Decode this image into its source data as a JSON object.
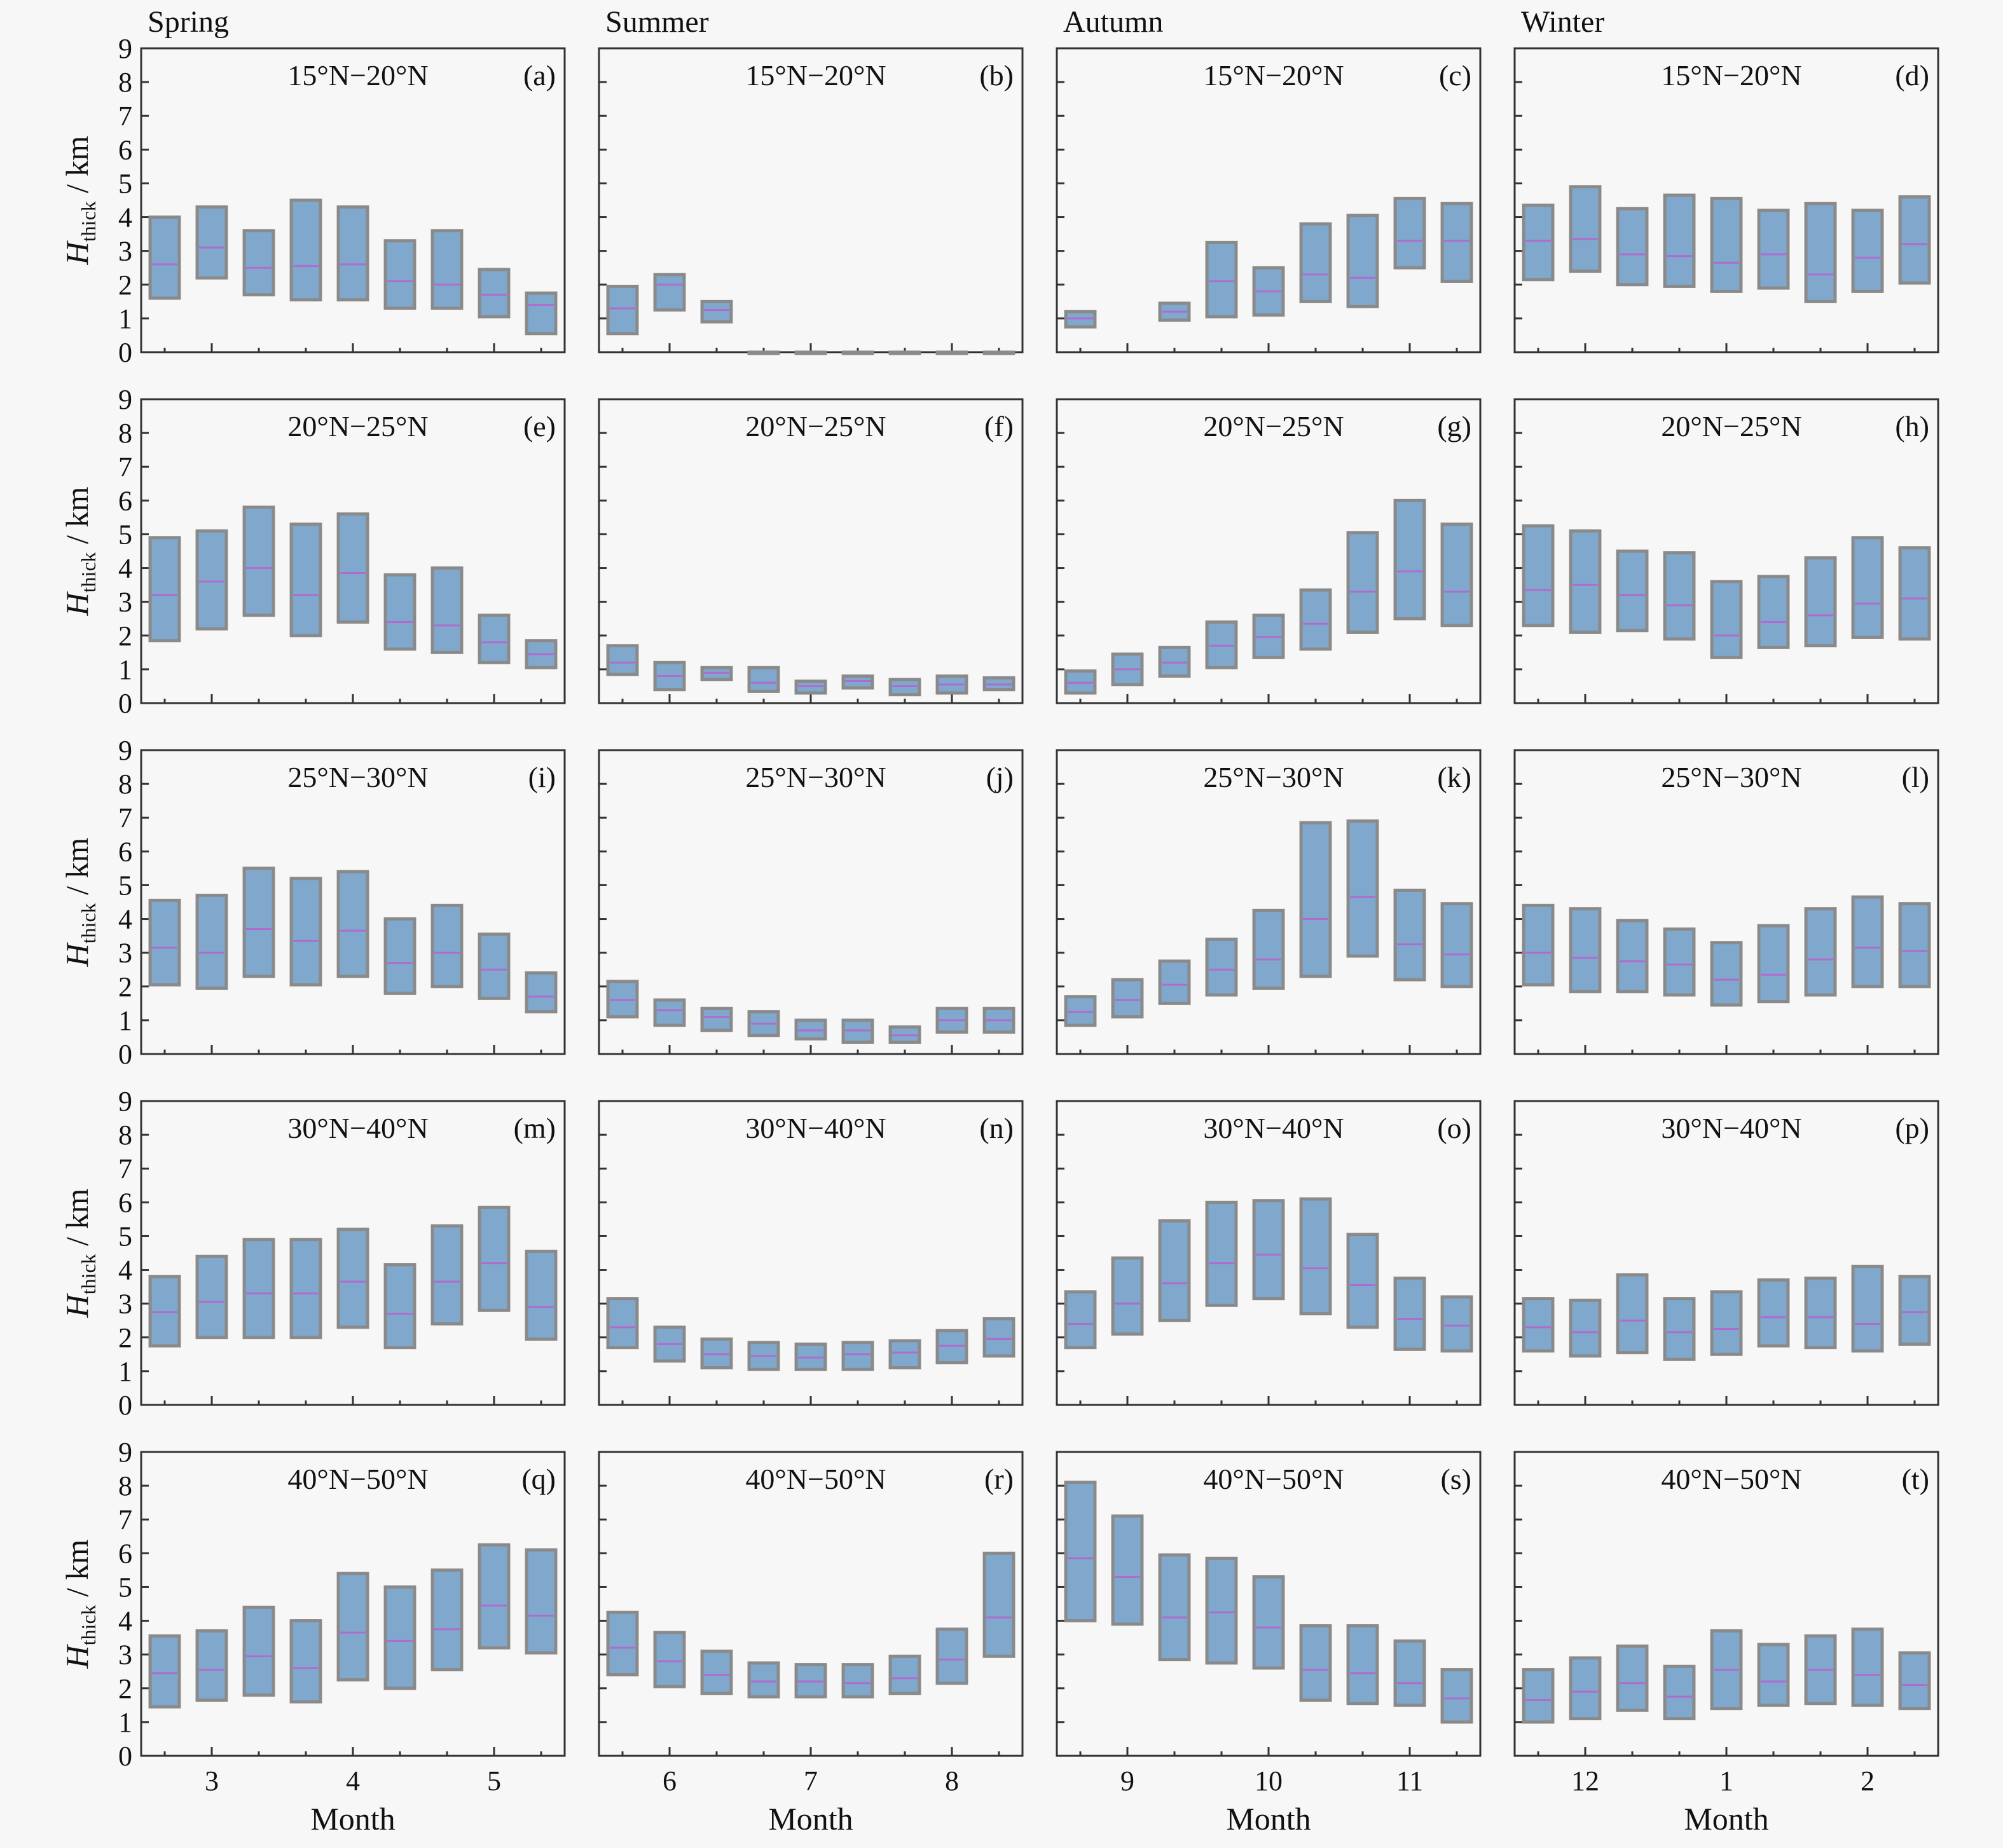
{
  "figure": {
    "seasons": [
      "Spring",
      "Summer",
      "Autumn",
      "Winter"
    ],
    "regions": [
      "15°N−20°N",
      "20°N−25°N",
      "25°N−30°N",
      "30°N−40°N",
      "40°N−50°N"
    ],
    "y_axis_label_main": "H",
    "y_axis_label_sub": "thick",
    "y_axis_label_unit": " / km",
    "x_axis_label": "Month",
    "y_ticks": [
      "0",
      "1",
      "2",
      "3",
      "4",
      "5",
      "6",
      "7",
      "8",
      "9"
    ],
    "colors": {
      "box_fill": "#7fa8cc",
      "box_edge": "#8a8a8a",
      "median": "#b06ad0",
      "frame": "#333333"
    }
  },
  "chart_data": {
    "type": "box",
    "ylim": [
      0,
      9
    ],
    "ylabel": "Hthick / km",
    "xlabel": "Month",
    "columns": [
      {
        "season": "Spring",
        "month_ticks": [
          "3",
          "4",
          "5"
        ]
      },
      {
        "season": "Summer",
        "month_ticks": [
          "6",
          "7",
          "8"
        ]
      },
      {
        "season": "Autumn",
        "month_ticks": [
          "9",
          "10",
          "11"
        ]
      },
      {
        "season": "Winter",
        "month_ticks": [
          "12",
          "1",
          "2"
        ]
      }
    ],
    "panels": [
      {
        "letter": "(a)",
        "season": "Spring",
        "region": "15°N−20°N",
        "boxes": [
          [
            1.6,
            2.6,
            4.0
          ],
          [
            2.2,
            3.1,
            4.3
          ],
          [
            1.7,
            2.5,
            3.6
          ],
          [
            1.55,
            2.55,
            4.5
          ],
          [
            1.55,
            2.6,
            4.3
          ],
          [
            1.3,
            2.1,
            3.3
          ],
          [
            1.3,
            2.0,
            3.6
          ],
          [
            1.05,
            1.7,
            2.45
          ],
          [
            0.55,
            1.4,
            1.75
          ]
        ]
      },
      {
        "letter": "(b)",
        "season": "Summer",
        "region": "15°N−20°N",
        "boxes": [
          [
            0.55,
            1.3,
            1.95
          ],
          [
            1.25,
            2.0,
            2.3
          ],
          [
            0.9,
            1.25,
            1.5
          ],
          [
            0,
            0,
            0
          ],
          [
            0,
            0,
            0
          ],
          [
            0,
            0,
            0
          ],
          [
            0,
            0,
            0
          ],
          [
            0,
            0,
            0
          ],
          [
            0,
            0,
            0
          ]
        ]
      },
      {
        "letter": "(c)",
        "season": "Autumn",
        "region": "15°N−20°N",
        "boxes": [
          [
            0.75,
            1.0,
            1.2
          ],
          null,
          [
            0.95,
            1.2,
            1.45
          ],
          [
            1.05,
            2.1,
            3.25
          ],
          [
            1.1,
            1.8,
            2.5
          ],
          [
            1.5,
            2.3,
            3.8
          ],
          [
            1.35,
            2.2,
            4.05
          ],
          [
            2.5,
            3.3,
            4.55
          ],
          [
            2.1,
            3.3,
            4.4
          ]
        ]
      },
      {
        "letter": "(d)",
        "season": "Winter",
        "region": "15°N−20°N",
        "boxes": [
          [
            2.15,
            3.3,
            4.35
          ],
          [
            2.4,
            3.35,
            4.9
          ],
          [
            2.0,
            2.9,
            4.25
          ],
          [
            1.95,
            2.85,
            4.65
          ],
          [
            1.8,
            2.65,
            4.55
          ],
          [
            1.9,
            2.9,
            4.2
          ],
          [
            1.5,
            2.3,
            4.4
          ],
          [
            1.8,
            2.8,
            4.2
          ],
          [
            2.05,
            3.2,
            4.6
          ]
        ]
      },
      {
        "letter": "(e)",
        "season": "Spring",
        "region": "20°N−25°N",
        "boxes": [
          [
            1.85,
            3.2,
            4.9
          ],
          [
            2.2,
            3.6,
            5.1
          ],
          [
            2.6,
            4.0,
            5.8
          ],
          [
            2.0,
            3.2,
            5.3
          ],
          [
            2.4,
            3.85,
            5.6
          ],
          [
            1.6,
            2.4,
            3.8
          ],
          [
            1.5,
            2.3,
            4.0
          ],
          [
            1.2,
            1.8,
            2.6
          ],
          [
            1.05,
            1.45,
            1.85
          ]
        ]
      },
      {
        "letter": "(f)",
        "season": "Summer",
        "region": "20°N−25°N",
        "boxes": [
          [
            0.85,
            1.2,
            1.7
          ],
          [
            0.4,
            0.8,
            1.2
          ],
          [
            0.7,
            0.9,
            1.05
          ],
          [
            0.35,
            0.6,
            1.05
          ],
          [
            0.3,
            0.5,
            0.65
          ],
          [
            0.45,
            0.65,
            0.8
          ],
          [
            0.25,
            0.5,
            0.7
          ],
          [
            0.3,
            0.55,
            0.8
          ],
          [
            0.4,
            0.55,
            0.75
          ]
        ]
      },
      {
        "letter": "(g)",
        "season": "Autumn",
        "region": "20°N−25°N",
        "boxes": [
          [
            0.3,
            0.6,
            0.95
          ],
          [
            0.55,
            1.0,
            1.45
          ],
          [
            0.8,
            1.2,
            1.65
          ],
          [
            1.05,
            1.7,
            2.4
          ],
          [
            1.35,
            1.95,
            2.6
          ],
          [
            1.6,
            2.35,
            3.35
          ],
          [
            2.1,
            3.3,
            5.05
          ],
          [
            2.5,
            3.9,
            6.0
          ],
          [
            2.3,
            3.3,
            5.3
          ]
        ]
      },
      {
        "letter": "(h)",
        "season": "Winter",
        "region": "20°N−25°N",
        "boxes": [
          [
            2.3,
            3.35,
            5.25
          ],
          [
            2.1,
            3.5,
            5.1
          ],
          [
            2.15,
            3.2,
            4.5
          ],
          [
            1.9,
            2.9,
            4.45
          ],
          [
            1.35,
            2.0,
            3.6
          ],
          [
            1.65,
            2.4,
            3.75
          ],
          [
            1.7,
            2.6,
            4.3
          ],
          [
            1.95,
            2.95,
            4.9
          ],
          [
            1.9,
            3.1,
            4.6
          ]
        ]
      },
      {
        "letter": "(i)",
        "season": "Spring",
        "region": "25°N−30°N",
        "boxes": [
          [
            2.05,
            3.15,
            4.55
          ],
          [
            1.95,
            3.0,
            4.7
          ],
          [
            2.3,
            3.7,
            5.5
          ],
          [
            2.05,
            3.35,
            5.2
          ],
          [
            2.3,
            3.65,
            5.4
          ],
          [
            1.8,
            2.7,
            4.0
          ],
          [
            2.0,
            3.0,
            4.4
          ],
          [
            1.65,
            2.5,
            3.55
          ],
          [
            1.25,
            1.7,
            2.4
          ]
        ]
      },
      {
        "letter": "(j)",
        "season": "Summer",
        "region": "25°N−30°N",
        "boxes": [
          [
            1.1,
            1.6,
            2.15
          ],
          [
            0.85,
            1.3,
            1.6
          ],
          [
            0.7,
            1.1,
            1.35
          ],
          [
            0.55,
            0.9,
            1.25
          ],
          [
            0.45,
            0.7,
            1.0
          ],
          [
            0.35,
            0.7,
            1.0
          ],
          [
            0.35,
            0.55,
            0.8
          ],
          [
            0.65,
            1.0,
            1.35
          ],
          [
            0.65,
            1.0,
            1.35
          ]
        ]
      },
      {
        "letter": "(k)",
        "season": "Autumn",
        "region": "25°N−30°N",
        "boxes": [
          [
            0.85,
            1.25,
            1.7
          ],
          [
            1.1,
            1.6,
            2.2
          ],
          [
            1.5,
            2.05,
            2.75
          ],
          [
            1.75,
            2.5,
            3.4
          ],
          [
            1.95,
            2.8,
            4.25
          ],
          [
            2.3,
            4.0,
            6.85
          ],
          [
            2.9,
            4.65,
            6.9
          ],
          [
            2.2,
            3.25,
            4.85
          ],
          [
            2.0,
            2.95,
            4.45
          ]
        ]
      },
      {
        "letter": "(l)",
        "season": "Winter",
        "region": "25°N−30°N",
        "boxes": [
          [
            2.05,
            3.0,
            4.4
          ],
          [
            1.85,
            2.85,
            4.3
          ],
          [
            1.85,
            2.75,
            3.95
          ],
          [
            1.75,
            2.65,
            3.7
          ],
          [
            1.45,
            2.2,
            3.3
          ],
          [
            1.55,
            2.35,
            3.8
          ],
          [
            1.75,
            2.8,
            4.3
          ],
          [
            2.0,
            3.15,
            4.65
          ],
          [
            2.0,
            3.05,
            4.45
          ]
        ]
      },
      {
        "letter": "(m)",
        "season": "Spring",
        "region": "30°N−40°N",
        "boxes": [
          [
            1.75,
            2.75,
            3.8
          ],
          [
            2.0,
            3.05,
            4.4
          ],
          [
            2.0,
            3.3,
            4.9
          ],
          [
            2.0,
            3.3,
            4.9
          ],
          [
            2.3,
            3.65,
            5.2
          ],
          [
            1.7,
            2.7,
            4.15
          ],
          [
            2.4,
            3.65,
            5.3
          ],
          [
            2.8,
            4.2,
            5.85
          ],
          [
            1.95,
            2.9,
            4.55
          ]
        ]
      },
      {
        "letter": "(n)",
        "season": "Summer",
        "region": "30°N−40°N",
        "boxes": [
          [
            1.7,
            2.3,
            3.15
          ],
          [
            1.3,
            1.8,
            2.3
          ],
          [
            1.1,
            1.5,
            1.95
          ],
          [
            1.05,
            1.45,
            1.85
          ],
          [
            1.05,
            1.4,
            1.8
          ],
          [
            1.05,
            1.5,
            1.85
          ],
          [
            1.1,
            1.55,
            1.9
          ],
          [
            1.25,
            1.75,
            2.2
          ],
          [
            1.45,
            1.95,
            2.55
          ]
        ]
      },
      {
        "letter": "(o)",
        "season": "Autumn",
        "region": "30°N−40°N",
        "boxes": [
          [
            1.7,
            2.4,
            3.35
          ],
          [
            2.1,
            3.0,
            4.35
          ],
          [
            2.5,
            3.6,
            5.45
          ],
          [
            2.95,
            4.2,
            6.0
          ],
          [
            3.15,
            4.45,
            6.05
          ],
          [
            2.7,
            4.05,
            6.1
          ],
          [
            2.3,
            3.55,
            5.05
          ],
          [
            1.65,
            2.55,
            3.75
          ],
          [
            1.6,
            2.35,
            3.2
          ]
        ]
      },
      {
        "letter": "(p)",
        "season": "Winter",
        "region": "30°N−40°N",
        "boxes": [
          [
            1.6,
            2.3,
            3.15
          ],
          [
            1.45,
            2.15,
            3.1
          ],
          [
            1.55,
            2.5,
            3.85
          ],
          [
            1.35,
            2.15,
            3.15
          ],
          [
            1.5,
            2.25,
            3.35
          ],
          [
            1.75,
            2.6,
            3.7
          ],
          [
            1.7,
            2.6,
            3.75
          ],
          [
            1.6,
            2.4,
            4.1
          ],
          [
            1.8,
            2.75,
            3.8
          ]
        ]
      },
      {
        "letter": "(q)",
        "season": "Spring",
        "region": "40°N−50°N",
        "boxes": [
          [
            1.45,
            2.45,
            3.55
          ],
          [
            1.65,
            2.55,
            3.7
          ],
          [
            1.8,
            2.95,
            4.4
          ],
          [
            1.6,
            2.6,
            4.0
          ],
          [
            2.25,
            3.65,
            5.4
          ],
          [
            2.0,
            3.4,
            5.0
          ],
          [
            2.55,
            3.75,
            5.5
          ],
          [
            3.2,
            4.45,
            6.25
          ],
          [
            3.05,
            4.15,
            6.1
          ]
        ]
      },
      {
        "letter": "(r)",
        "season": "Summer",
        "region": "40°N−50°N",
        "boxes": [
          [
            2.4,
            3.2,
            4.25
          ],
          [
            2.05,
            2.8,
            3.65
          ],
          [
            1.85,
            2.4,
            3.1
          ],
          [
            1.75,
            2.2,
            2.75
          ],
          [
            1.75,
            2.2,
            2.7
          ],
          [
            1.75,
            2.15,
            2.7
          ],
          [
            1.85,
            2.3,
            2.95
          ],
          [
            2.15,
            2.85,
            3.75
          ],
          [
            2.95,
            4.1,
            6.0
          ]
        ]
      },
      {
        "letter": "(s)",
        "season": "Autumn",
        "region": "40°N−50°N",
        "boxes": [
          [
            4.0,
            5.85,
            8.1
          ],
          [
            3.9,
            5.3,
            7.1
          ],
          [
            2.85,
            4.1,
            5.95
          ],
          [
            2.75,
            4.25,
            5.85
          ],
          [
            2.6,
            3.8,
            5.3
          ],
          [
            1.65,
            2.55,
            3.85
          ],
          [
            1.55,
            2.45,
            3.85
          ],
          [
            1.5,
            2.15,
            3.4
          ],
          [
            1.0,
            1.7,
            2.55
          ]
        ]
      },
      {
        "letter": "(t)",
        "season": "Winter",
        "region": "40°N−50°N",
        "boxes": [
          [
            1.0,
            1.65,
            2.55
          ],
          [
            1.1,
            1.9,
            2.9
          ],
          [
            1.35,
            2.15,
            3.25
          ],
          [
            1.1,
            1.75,
            2.65
          ],
          [
            1.4,
            2.55,
            3.7
          ],
          [
            1.5,
            2.2,
            3.3
          ],
          [
            1.55,
            2.55,
            3.55
          ],
          [
            1.5,
            2.4,
            3.75
          ],
          [
            1.4,
            2.1,
            3.05
          ]
        ]
      }
    ]
  }
}
